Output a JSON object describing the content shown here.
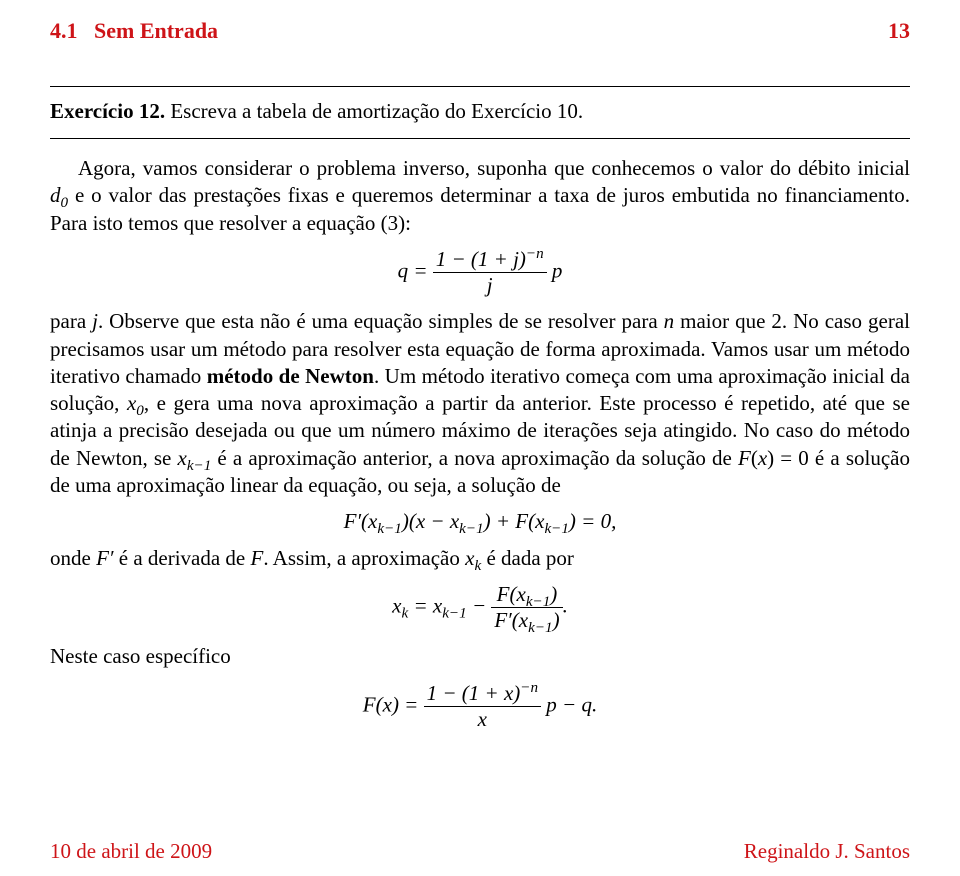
{
  "header": {
    "section": "4.1",
    "title": "Sem Entrada",
    "page_number": "13"
  },
  "exercise": {
    "label": "Exercício 12.",
    "text": " Escreva a tabela de amortização do Exercício 10."
  },
  "para1_a": "Agora, vamos considerar o problema inverso, suponha que conhecemos o valor do débito inicial ",
  "para1_b": " e o valor das prestações fixas e queremos determinar a taxa de juros embutida no financiamento. Para isto temos que resolver a equação (3):",
  "eq1": {
    "lhs": "q =",
    "num": "1 − (1 + j)",
    "numexp": "−n",
    "den": "j",
    "rhs": "p"
  },
  "para2_a": "para ",
  "para2_b": ". Observe que esta não é uma equação simples de se resolver para ",
  "para2_c": " maior que 2. No caso geral precisamos usar um método para resolver esta equação de forma aproximada. Vamos usar um método iterativo chamado ",
  "para2_method": "método de Newton",
  "para2_d": ". Um método iterativo começa com uma aproximação inicial da solução, ",
  "para2_e": ", e gera uma nova aproximação a partir da anterior. Este processo é repetido, até que se atinja a precisão desejada ou que um número máximo de iterações seja atingido. No caso do método de Newton, se ",
  "para2_f": " é a aproximação anterior, a nova aproximação da solução de ",
  "para2_g": " é a solução de uma aproximação linear da equação, ou seja, a solução de",
  "eq2": "F′(xₖ₋₁)(x − xₖ₋₁) + F(xₖ₋₁) = 0,",
  "para3_a": "onde ",
  "para3_b": " é a derivada de ",
  "para3_c": ". Assim, a aproximação ",
  "para3_d": " é dada por",
  "eq3": {
    "lhs_a": "x",
    "lhs_sub": "k",
    "mid": " = x",
    "mid_sub": "k−1",
    "minus": " − ",
    "num": "F(x",
    "num_sub": "k−1",
    "num_close": ")",
    "den": "F′(x",
    "den_sub": "k−1",
    "den_close": ")",
    "dot": "."
  },
  "para4": "Neste caso específico",
  "eq4": {
    "lhs": "F(x) =",
    "num": "1 − (1 + x)",
    "numexp": "−n",
    "den": "x",
    "rhs": "p − q."
  },
  "footer": {
    "date": "10 de abril de 2009",
    "author": "Reginaldo J. Santos"
  },
  "colors": {
    "accent": "#ce1418",
    "text": "#000000",
    "background": "#ffffff"
  }
}
